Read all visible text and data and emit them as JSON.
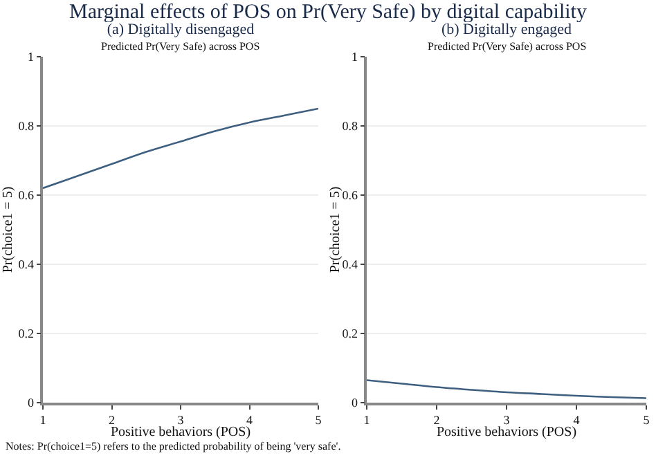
{
  "chart_data": [
    {
      "type": "line",
      "title": "(a) Digitally disengaged",
      "subtitle": "Predicted Pr(Very Safe) across POS",
      "xlabel": "Positive behaviors (POS)",
      "ylabel": "Pr(choice1 = 5)",
      "annotations": [
        "Marginal effects of POS on Pr(Very Safe) by digital capability",
        "Notes: Pr(choice1=5) refers to the predicted probability of being 'very safe'."
      ],
      "x": [
        1,
        1.5,
        2,
        2.5,
        3,
        3.5,
        4,
        4.5,
        5
      ],
      "series": [
        {
          "color": "#3e5f7f",
          "values": [
            0.62,
            0.655,
            0.69,
            0.725,
            0.755,
            0.785,
            0.81,
            0.83,
            0.85
          ]
        }
      ],
      "xlim": [
        1,
        5
      ],
      "xticks": [
        1,
        2,
        3,
        4,
        5
      ],
      "ylim": [
        0,
        1
      ],
      "yticks": [
        0,
        0.2,
        0.4,
        0.6,
        0.8,
        1
      ],
      "grid": "y",
      "marker": "none",
      "line_style": "solid"
    },
    {
      "type": "line",
      "title": "(b) Digitally engaged",
      "subtitle": "Predicted Pr(Very Safe) across POS",
      "xlabel": "Positive behaviors (POS)",
      "ylabel": "Pr(choice1 = 5)",
      "x": [
        1,
        1.5,
        2,
        2.5,
        3,
        3.5,
        4,
        4.5,
        5
      ],
      "series": [
        {
          "color": "#3e5f7f",
          "values": [
            0.065,
            0.055,
            0.045,
            0.037,
            0.03,
            0.025,
            0.02,
            0.016,
            0.013
          ]
        }
      ],
      "xlim": [
        1,
        5
      ],
      "xticks": [
        1,
        2,
        3,
        4,
        5
      ],
      "ylim": [
        0,
        1
      ],
      "yticks": [
        0,
        0.2,
        0.4,
        0.6,
        0.8,
        1
      ],
      "grid": "y",
      "marker": "none",
      "line_style": "solid"
    }
  ]
}
